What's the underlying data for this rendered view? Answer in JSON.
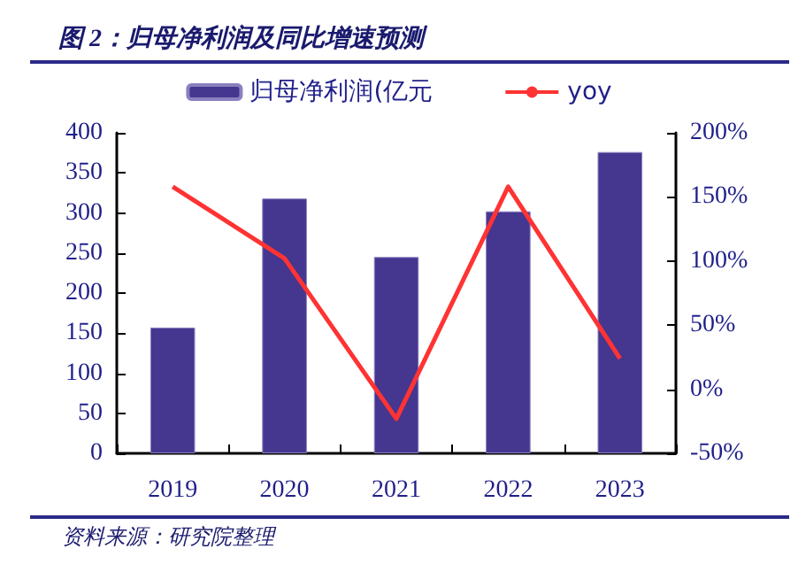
{
  "chart_data": {
    "type": "bar",
    "title": "图 2：归母净利润及同比增速预测",
    "categories": [
      "2019",
      "2020",
      "2021",
      "2022",
      "2023"
    ],
    "series": [
      {
        "name": "归母净利润(亿元",
        "color": "#45368f",
        "values": [
          157,
          318,
          245,
          302,
          376
        ]
      },
      {
        "name": "yoy",
        "type": "line",
        "axis": "y2",
        "color": "#ff3333",
        "values": [
          158,
          102,
          -23,
          158,
          24
        ]
      }
    ],
    "ylim": [
      0,
      400
    ],
    "yticks": [
      0,
      50,
      100,
      150,
      200,
      250,
      300,
      350,
      400
    ],
    "y2lim": [
      -50,
      200
    ],
    "y2ticks": [
      {
        "value": -50,
        "label": "-50%"
      },
      {
        "value": 0,
        "label": "0%"
      },
      {
        "value": 50,
        "label": "50%"
      },
      {
        "value": 100,
        "label": "100%"
      },
      {
        "value": 150,
        "label": "150%"
      },
      {
        "value": 200,
        "label": "200%"
      }
    ],
    "annotations": [
      "资料来源：研究院整理"
    ],
    "legend": "top",
    "grid": false,
    "marker": "none",
    "line_style": "solid"
  }
}
